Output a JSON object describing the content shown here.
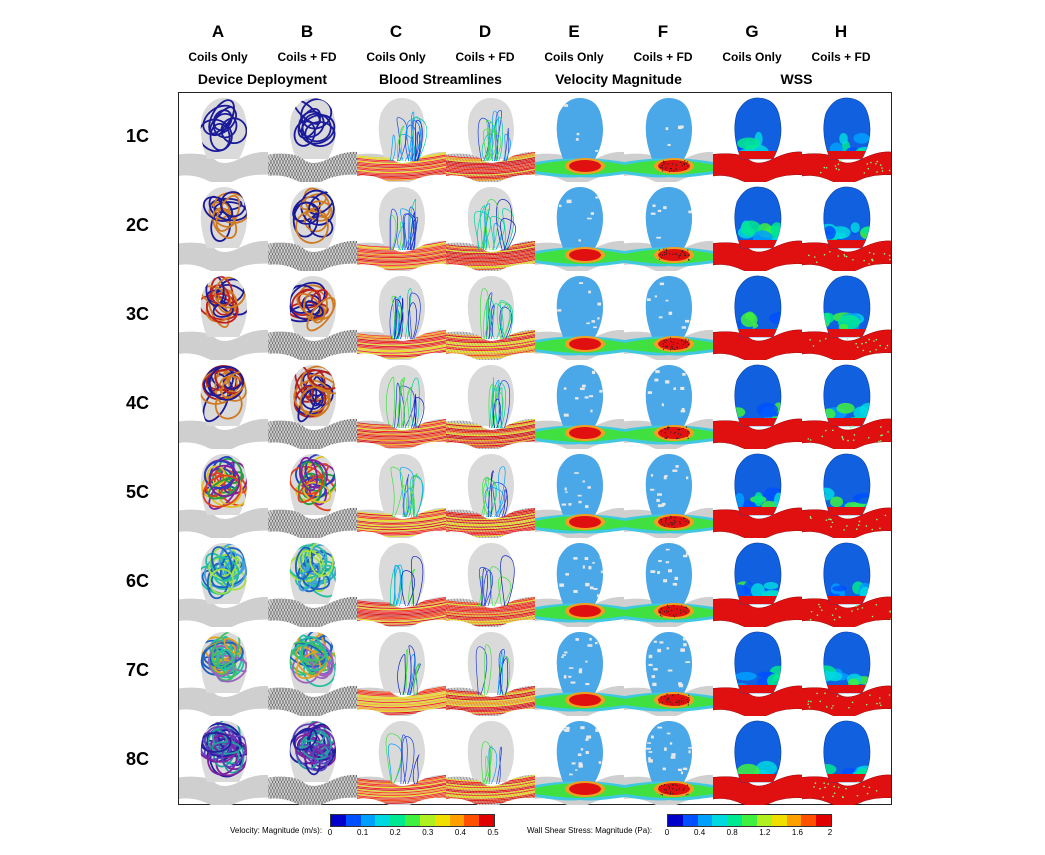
{
  "columns": [
    {
      "letter": "A",
      "sub": "Coils Only"
    },
    {
      "letter": "B",
      "sub": "Coils + FD"
    },
    {
      "letter": "C",
      "sub": "Coils Only"
    },
    {
      "letter": "D",
      "sub": "Coils + FD"
    },
    {
      "letter": "E",
      "sub": "Coils Only"
    },
    {
      "letter": "F",
      "sub": "Coils + FD"
    },
    {
      "letter": "G",
      "sub": "Coils Only"
    },
    {
      "letter": "H",
      "sub": "Coils + FD"
    }
  ],
  "groups": [
    "Device Deployment",
    "Blood Streamlines",
    "Velocity Magnitude",
    "WSS"
  ],
  "rows": [
    "1C",
    "2C",
    "3C",
    "4C",
    "5C",
    "6C",
    "7C",
    "8C"
  ],
  "legend_velocity": {
    "title": "Velocity: Magnitude (m/s):",
    "ticks": [
      "0",
      "0.1",
      "0.2",
      "0.3",
      "0.4",
      "0.5"
    ]
  },
  "legend_wss": {
    "title": "Wall Shear Stress: Magnitude (Pa):",
    "ticks": [
      "0",
      "0.4",
      "0.8",
      "1.2",
      "1.6",
      "2"
    ]
  },
  "colors": {
    "scale": [
      "#0000c8",
      "#0050ff",
      "#00a0ff",
      "#00d8e0",
      "#00e890",
      "#40f040",
      "#b0f020",
      "#f0e000",
      "#ffa000",
      "#ff5000",
      "#e00000"
    ],
    "vessel": "#cfcfcf",
    "mesh": "#3a3a3a",
    "coil_navy": "#1a1a9a",
    "coil_orange": "#d07a20"
  }
}
